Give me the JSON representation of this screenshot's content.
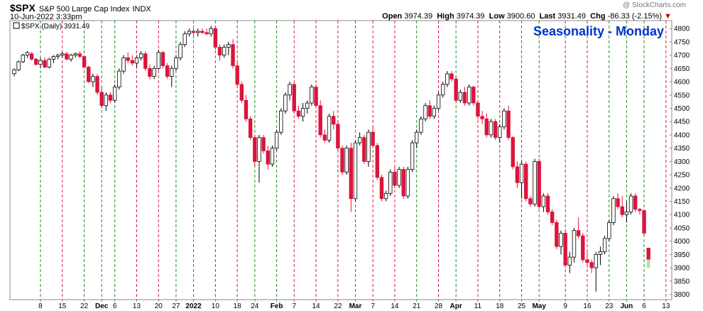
{
  "header": {
    "ticker": "$SPX",
    "name": "S&P 500 Large Cap Index",
    "exchange": "INDX",
    "datetime": "10-Jun-2022 3:33pm",
    "watermark": "@ StockCharts.com",
    "quote": {
      "open_label": "Open",
      "open": "3974.39",
      "high_label": "High",
      "high": "3974.39",
      "low_label": "Low",
      "low": "3900.60",
      "last_label": "Last",
      "last": "3931.49",
      "chg_label": "Chg",
      "chg": "-86.33 (-2.15%)",
      "chg_arrow": "▼"
    }
  },
  "legend": {
    "label": "$SPX (Daily) 3931.49",
    "color": "#000000"
  },
  "colors": {
    "up_candle": "#ffffff",
    "down_candle": "#dc143c",
    "green_line": "#1e8c1e",
    "red_line": "#dc143c",
    "title": "#0033cc",
    "frame": "#888888"
  },
  "chart_data": {
    "type": "candlestick",
    "title": "Seasonality - Monday",
    "ylim": [
      3780,
      4830
    ],
    "yticks": [
      3800,
      3850,
      3900,
      3950,
      4000,
      4050,
      4100,
      4150,
      4200,
      4250,
      4300,
      4350,
      4400,
      4450,
      4500,
      4550,
      4600,
      4650,
      4700,
      4750,
      4800
    ],
    "x_labels": [
      {
        "label": "8",
        "i": 6,
        "bold": false
      },
      {
        "label": "15",
        "i": 11,
        "bold": false
      },
      {
        "label": "22",
        "i": 16,
        "bold": false
      },
      {
        "label": "Dec",
        "i": 20,
        "bold": true
      },
      {
        "label": "6",
        "i": 23,
        "bold": false
      },
      {
        "label": "13",
        "i": 28,
        "bold": false
      },
      {
        "label": "20",
        "i": 33,
        "bold": false
      },
      {
        "label": "27",
        "i": 37,
        "bold": false
      },
      {
        "label": "2022",
        "i": 41,
        "bold": true
      },
      {
        "label": "10",
        "i": 46,
        "bold": false
      },
      {
        "label": "18",
        "i": 51,
        "bold": false
      },
      {
        "label": "24",
        "i": 55,
        "bold": false
      },
      {
        "label": "Feb",
        "i": 60,
        "bold": true
      },
      {
        "label": "7",
        "i": 64,
        "bold": false
      },
      {
        "label": "14",
        "i": 69,
        "bold": false
      },
      {
        "label": "22",
        "i": 74,
        "bold": false
      },
      {
        "label": "Mar",
        "i": 78,
        "bold": true
      },
      {
        "label": "7",
        "i": 82,
        "bold": false
      },
      {
        "label": "14",
        "i": 87,
        "bold": false
      },
      {
        "label": "21",
        "i": 92,
        "bold": false
      },
      {
        "label": "28",
        "i": 97,
        "bold": false
      },
      {
        "label": "Apr",
        "i": 101,
        "bold": true
      },
      {
        "label": "11",
        "i": 106,
        "bold": false
      },
      {
        "label": "18",
        "i": 111,
        "bold": false
      },
      {
        "label": "25",
        "i": 116,
        "bold": false
      },
      {
        "label": "May",
        "i": 120,
        "bold": true
      },
      {
        "label": "9",
        "i": 126,
        "bold": false
      },
      {
        "label": "16",
        "i": 131,
        "bold": false
      },
      {
        "label": "23",
        "i": 136,
        "bold": false
      },
      {
        "label": "Jun",
        "i": 140,
        "bold": true
      },
      {
        "label": "6",
        "i": 144,
        "bold": false
      },
      {
        "label": "13",
        "i": 149,
        "bold": false
      }
    ],
    "monday_lines": [
      {
        "i": 6,
        "kind": "green"
      },
      {
        "i": 11,
        "kind": "red"
      },
      {
        "i": 16,
        "kind": "green"
      },
      {
        "i": 20,
        "kind": "green"
      },
      {
        "i": 23,
        "kind": "green"
      },
      {
        "i": 28,
        "kind": "red"
      },
      {
        "i": 33,
        "kind": "red"
      },
      {
        "i": 37,
        "kind": "green"
      },
      {
        "i": 41,
        "kind": "green"
      },
      {
        "i": 46,
        "kind": "red"
      },
      {
        "i": 51,
        "kind": "red"
      },
      {
        "i": 55,
        "kind": "green"
      },
      {
        "i": 60,
        "kind": "green"
      },
      {
        "i": 64,
        "kind": "red"
      },
      {
        "i": 69,
        "kind": "red"
      },
      {
        "i": 74,
        "kind": "red"
      },
      {
        "i": 78,
        "kind": "green"
      },
      {
        "i": 82,
        "kind": "red"
      },
      {
        "i": 87,
        "kind": "red"
      },
      {
        "i": 92,
        "kind": "green"
      },
      {
        "i": 97,
        "kind": "red"
      },
      {
        "i": 101,
        "kind": "green"
      },
      {
        "i": 106,
        "kind": "red"
      },
      {
        "i": 111,
        "kind": "red"
      },
      {
        "i": 116,
        "kind": "green"
      },
      {
        "i": 120,
        "kind": "green"
      },
      {
        "i": 126,
        "kind": "red"
      },
      {
        "i": 131,
        "kind": "red"
      },
      {
        "i": 136,
        "kind": "green"
      },
      {
        "i": 140,
        "kind": "green"
      },
      {
        "i": 144,
        "kind": "green"
      },
      {
        "i": 149,
        "kind": "red"
      }
    ],
    "candles": [
      [
        4630,
        4650,
        4620,
        4645
      ],
      [
        4645,
        4680,
        4640,
        4675
      ],
      [
        4675,
        4705,
        4670,
        4700
      ],
      [
        4700,
        4715,
        4690,
        4710
      ],
      [
        4705,
        4712,
        4680,
        4685
      ],
      [
        4685,
        4690,
        4660,
        4665
      ],
      [
        4665,
        4690,
        4650,
        4680
      ],
      [
        4680,
        4692,
        4650,
        4655
      ],
      [
        4655,
        4690,
        4650,
        4685
      ],
      [
        4685,
        4700,
        4670,
        4695
      ],
      [
        4695,
        4705,
        4685,
        4700
      ],
      [
        4700,
        4712,
        4690,
        4705
      ],
      [
        4705,
        4712,
        4680,
        4685
      ],
      [
        4685,
        4705,
        4675,
        4700
      ],
      [
        4700,
        4710,
        4690,
        4705
      ],
      [
        4705,
        4715,
        4690,
        4695
      ],
      [
        4695,
        4700,
        4650,
        4655
      ],
      [
        4655,
        4660,
        4595,
        4600
      ],
      [
        4600,
        4630,
        4580,
        4620
      ],
      [
        4620,
        4630,
        4550,
        4560
      ],
      [
        4560,
        4580,
        4500,
        4510
      ],
      [
        4510,
        4560,
        4490,
        4550
      ],
      [
        4550,
        4560,
        4520,
        4530
      ],
      [
        4530,
        4590,
        4520,
        4580
      ],
      [
        4580,
        4650,
        4570,
        4640
      ],
      [
        4640,
        4700,
        4630,
        4690
      ],
      [
        4690,
        4710,
        4670,
        4680
      ],
      [
        4680,
        4700,
        4660,
        4670
      ],
      [
        4670,
        4700,
        4650,
        4690
      ],
      [
        4690,
        4715,
        4680,
        4705
      ],
      [
        4705,
        4715,
        4640,
        4650
      ],
      [
        4650,
        4665,
        4610,
        4620
      ],
      [
        4620,
        4660,
        4610,
        4650
      ],
      [
        4650,
        4720,
        4645,
        4710
      ],
      [
        4710,
        4715,
        4650,
        4660
      ],
      [
        4660,
        4670,
        4610,
        4620
      ],
      [
        4620,
        4660,
        4580,
        4650
      ],
      [
        4650,
        4700,
        4640,
        4690
      ],
      [
        4690,
        4750,
        4680,
        4740
      ],
      [
        4740,
        4790,
        4730,
        4780
      ],
      [
        4780,
        4800,
        4770,
        4790
      ],
      [
        4790,
        4800,
        4775,
        4785
      ],
      [
        4785,
        4800,
        4770,
        4790
      ],
      [
        4790,
        4800,
        4780,
        4785
      ],
      [
        4785,
        4800,
        4775,
        4780
      ],
      [
        4780,
        4810,
        4770,
        4800
      ],
      [
        4800,
        4810,
        4720,
        4730
      ],
      [
        4730,
        4740,
        4680,
        4700
      ],
      [
        4700,
        4740,
        4690,
        4730
      ],
      [
        4730,
        4750,
        4700,
        4740
      ],
      [
        4740,
        4760,
        4650,
        4660
      ],
      [
        4660,
        4670,
        4580,
        4590
      ],
      [
        4590,
        4600,
        4520,
        4530
      ],
      [
        4530,
        4550,
        4450,
        4460
      ],
      [
        4460,
        4470,
        4380,
        4390
      ],
      [
        4390,
        4400,
        4280,
        4300
      ],
      [
        4300,
        4400,
        4220,
        4390
      ],
      [
        4390,
        4400,
        4330,
        4340
      ],
      [
        4340,
        4360,
        4270,
        4290
      ],
      [
        4290,
        4360,
        4280,
        4350
      ],
      [
        4350,
        4420,
        4340,
        4410
      ],
      [
        4410,
        4500,
        4400,
        4490
      ],
      [
        4490,
        4560,
        4480,
        4550
      ],
      [
        4550,
        4600,
        4530,
        4590
      ],
      [
        4590,
        4595,
        4480,
        4490
      ],
      [
        4490,
        4510,
        4460,
        4470
      ],
      [
        4470,
        4520,
        4450,
        4500
      ],
      [
        4500,
        4530,
        4480,
        4520
      ],
      [
        4520,
        4590,
        4510,
        4580
      ],
      [
        4580,
        4590,
        4500,
        4510
      ],
      [
        4510,
        4530,
        4390,
        4400
      ],
      [
        4400,
        4420,
        4370,
        4380
      ],
      [
        4380,
        4480,
        4370,
        4470
      ],
      [
        4470,
        4490,
        4420,
        4440
      ],
      [
        4440,
        4450,
        4340,
        4350
      ],
      [
        4350,
        4360,
        4250,
        4260
      ],
      [
        4260,
        4360,
        4250,
        4350
      ],
      [
        4350,
        4370,
        4110,
        4160
      ],
      [
        4160,
        4380,
        4150,
        4370
      ],
      [
        4370,
        4410,
        4360,
        4390
      ],
      [
        4390,
        4400,
        4290,
        4300
      ],
      [
        4300,
        4420,
        4280,
        4410
      ],
      [
        4410,
        4430,
        4350,
        4360
      ],
      [
        4360,
        4370,
        4230,
        4240
      ],
      [
        4240,
        4250,
        4150,
        4160
      ],
      [
        4160,
        4190,
        4150,
        4180
      ],
      [
        4180,
        4270,
        4170,
        4260
      ],
      [
        4260,
        4280,
        4200,
        4210
      ],
      [
        4210,
        4280,
        4200,
        4270
      ],
      [
        4270,
        4280,
        4160,
        4170
      ],
      [
        4170,
        4280,
        4160,
        4270
      ],
      [
        4270,
        4380,
        4260,
        4370
      ],
      [
        4370,
        4420,
        4350,
        4410
      ],
      [
        4410,
        4470,
        4400,
        4460
      ],
      [
        4460,
        4520,
        4450,
        4510
      ],
      [
        4510,
        4530,
        4460,
        4470
      ],
      [
        4470,
        4510,
        4460,
        4500
      ],
      [
        4500,
        4560,
        4490,
        4550
      ],
      [
        4550,
        4600,
        4540,
        4590
      ],
      [
        4590,
        4640,
        4580,
        4630
      ],
      [
        4630,
        4640,
        4600,
        4610
      ],
      [
        4610,
        4620,
        4520,
        4530
      ],
      [
        4530,
        4570,
        4520,
        4560
      ],
      [
        4560,
        4580,
        4510,
        4520
      ],
      [
        4520,
        4590,
        4510,
        4580
      ],
      [
        4580,
        4585,
        4510,
        4520
      ],
      [
        4520,
        4530,
        4460,
        4470
      ],
      [
        4470,
        4490,
        4440,
        4460
      ],
      [
        4460,
        4480,
        4390,
        4400
      ],
      [
        4400,
        4460,
        4390,
        4450
      ],
      [
        4450,
        4460,
        4380,
        4390
      ],
      [
        4390,
        4440,
        4370,
        4430
      ],
      [
        4430,
        4500,
        4420,
        4490
      ],
      [
        4490,
        4510,
        4380,
        4390
      ],
      [
        4390,
        4395,
        4270,
        4280
      ],
      [
        4280,
        4300,
        4200,
        4220
      ],
      [
        4220,
        4300,
        4160,
        4290
      ],
      [
        4290,
        4300,
        4150,
        4160
      ],
      [
        4160,
        4170,
        4130,
        4140
      ],
      [
        4140,
        4310,
        4130,
        4300
      ],
      [
        4300,
        4310,
        4120,
        4130
      ],
      [
        4130,
        4180,
        4110,
        4170
      ],
      [
        4170,
        4180,
        4100,
        4110
      ],
      [
        4110,
        4120,
        4060,
        4070
      ],
      [
        4070,
        4080,
        3970,
        3980
      ],
      [
        3980,
        4040,
        3950,
        4030
      ],
      [
        4030,
        4040,
        3900,
        3910
      ],
      [
        3910,
        3960,
        3880,
        3940
      ],
      [
        3940,
        4050,
        3920,
        4040
      ],
      [
        4040,
        4090,
        4010,
        4020
      ],
      [
        4020,
        4030,
        3920,
        3930
      ],
      [
        3930,
        3960,
        3900,
        3920
      ],
      [
        3920,
        3930,
        3880,
        3900
      ],
      [
        3900,
        3960,
        3810,
        3950
      ],
      [
        3950,
        3980,
        3910,
        3960
      ],
      [
        3960,
        4020,
        3950,
        4010
      ],
      [
        4010,
        4080,
        4000,
        4070
      ],
      [
        4070,
        4170,
        4060,
        4160
      ],
      [
        4160,
        4180,
        4120,
        4130
      ],
      [
        4130,
        4170,
        4090,
        4100
      ],
      [
        4100,
        4150,
        4070,
        4110
      ],
      [
        4110,
        4180,
        4100,
        4170
      ],
      [
        4170,
        4180,
        4110,
        4120
      ],
      [
        4120,
        4125,
        4100,
        4115
      ],
      [
        4115,
        4120,
        4020,
        4030
      ],
      [
        3974,
        3974,
        3900,
        3931
      ]
    ]
  }
}
